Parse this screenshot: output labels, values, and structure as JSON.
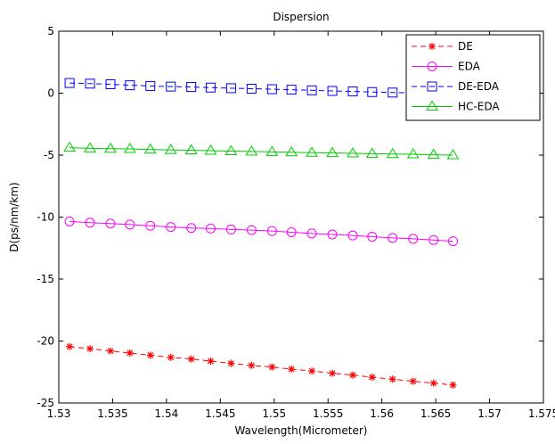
{
  "chart_data": {
    "type": "line",
    "title": "Dispersion",
    "xlabel": "Wavelength(Micrometer)",
    "ylabel": "D(ps/nm/km)",
    "xlim": [
      1.53,
      1.575
    ],
    "ylim": [
      -25,
      5
    ],
    "grid": false,
    "legend_position": "top-right",
    "x_ticks": [
      1.53,
      1.535,
      1.54,
      1.545,
      1.55,
      1.555,
      1.56,
      1.565,
      1.57,
      1.575
    ],
    "x_tick_labels": [
      "1.53",
      "1.535",
      "1.54",
      "1.545",
      "1.55",
      "1.555",
      "1.56",
      "1.565",
      "1.57",
      "1.575"
    ],
    "y_ticks": [
      -25,
      -20,
      -15,
      -10,
      -5,
      0,
      5
    ],
    "y_tick_labels": [
      "-25",
      "-20",
      "-15",
      "-10",
      "-5",
      "0",
      "5"
    ],
    "x": [
      1.531,
      1.5329,
      1.5348,
      1.5366,
      1.5385,
      1.5404,
      1.5423,
      1.5441,
      1.546,
      1.5479,
      1.5498,
      1.5516,
      1.5535,
      1.5554,
      1.5573,
      1.5591,
      1.561,
      1.5629,
      1.5648,
      1.5666
    ],
    "series": [
      {
        "name": "DE",
        "color": "#ff0000",
        "marker": "star",
        "line": "dashed",
        "values": [
          -20.45,
          -20.62,
          -20.8,
          -20.97,
          -21.15,
          -21.32,
          -21.45,
          -21.62,
          -21.8,
          -21.97,
          -22.1,
          -22.27,
          -22.42,
          -22.6,
          -22.75,
          -22.92,
          -23.08,
          -23.25,
          -23.4,
          -23.55
        ]
      },
      {
        "name": "EDA",
        "color": "#ff00ff",
        "marker": "circle",
        "line": "solid",
        "values": [
          -10.35,
          -10.45,
          -10.52,
          -10.6,
          -10.7,
          -10.8,
          -10.88,
          -10.92,
          -11.0,
          -11.05,
          -11.12,
          -11.22,
          -11.32,
          -11.4,
          -11.48,
          -11.58,
          -11.68,
          -11.75,
          -11.85,
          -11.95
        ]
      },
      {
        "name": "DE-EDA",
        "color": "#0000ff",
        "marker": "square",
        "line": "dashed",
        "values": [
          0.82,
          0.77,
          0.72,
          0.64,
          0.58,
          0.53,
          0.5,
          0.45,
          0.4,
          0.36,
          0.32,
          0.28,
          0.23,
          0.18,
          0.14,
          0.09,
          0.05,
          0.02,
          -0.02,
          -0.06
        ]
      },
      {
        "name": "HC-EDA",
        "color": "#00cc00",
        "marker": "triangle",
        "line": "solid",
        "values": [
          -4.4,
          -4.45,
          -4.48,
          -4.5,
          -4.55,
          -4.58,
          -4.6,
          -4.64,
          -4.68,
          -4.7,
          -4.74,
          -4.77,
          -4.8,
          -4.83,
          -4.86,
          -4.88,
          -4.91,
          -4.93,
          -4.97,
          -5.0
        ]
      }
    ]
  }
}
